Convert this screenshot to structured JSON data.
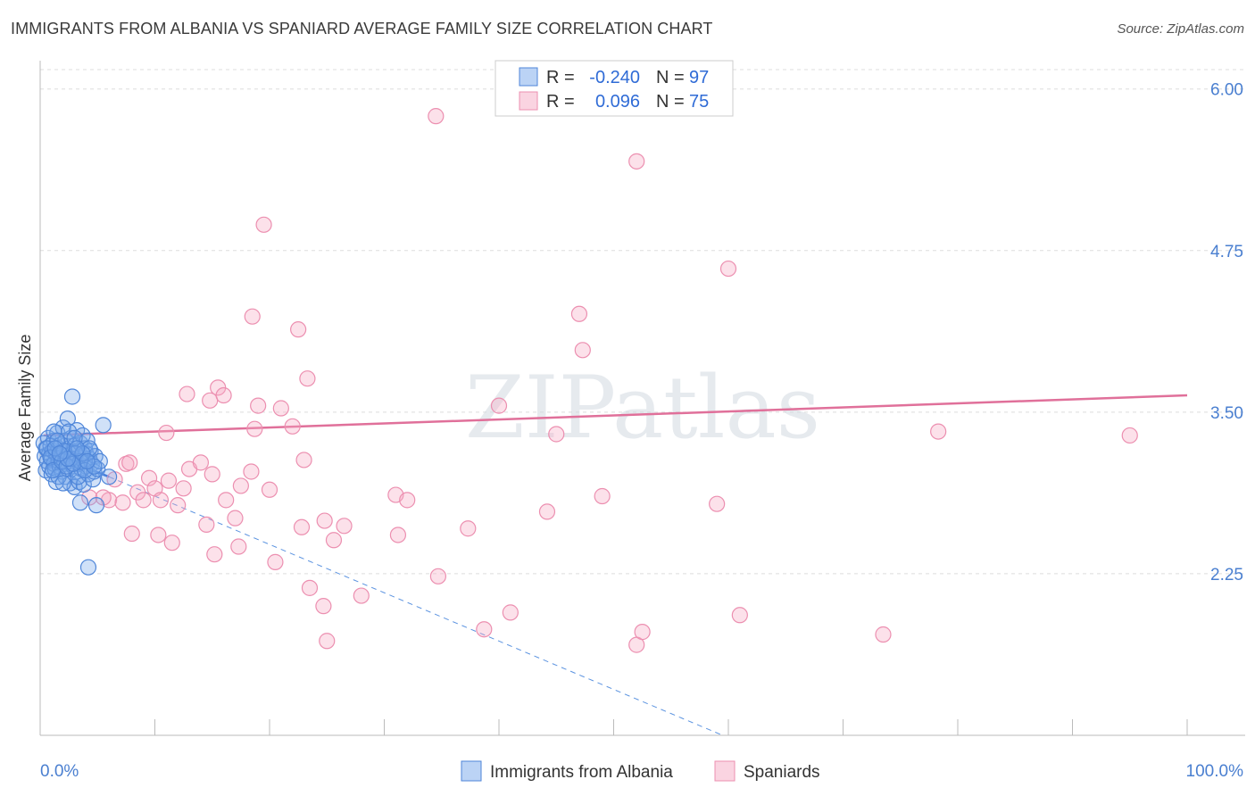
{
  "title": "IMMIGRANTS FROM ALBANIA VS SPANIARD AVERAGE FAMILY SIZE CORRELATION CHART",
  "source": "Source: ZipAtlas.com",
  "chart_data": {
    "type": "scatter",
    "ylabel": "Average Family Size",
    "xlabel": "",
    "x_tick_labels": [
      "0.0%",
      "100.0%"
    ],
    "xlim": [
      0,
      100
    ],
    "ylim": [
      1.0,
      6.15
    ],
    "y_ticks": [
      2.25,
      3.5,
      4.75,
      6.0
    ],
    "y_tick_labels": [
      "2.25",
      "3.50",
      "4.75",
      "6.00"
    ],
    "legend": {
      "r_label": "R =",
      "n_label": "N =",
      "entries": [
        {
          "r": "-0.240",
          "n": "97",
          "color": "#6aa0e8"
        },
        {
          "r": "0.096",
          "n": "75",
          "color": "#f09ab8"
        }
      ]
    },
    "watermark": "ZIPatlas",
    "series": [
      {
        "name": "Immigrants from Albania",
        "color": "#5b93e0",
        "points": [
          [
            0.3,
            3.26
          ],
          [
            0.4,
            3.16
          ],
          [
            0.5,
            3.05
          ],
          [
            0.5,
            3.22
          ],
          [
            0.6,
            3.12
          ],
          [
            0.7,
            3.3
          ],
          [
            0.8,
            3.18
          ],
          [
            0.8,
            3.08
          ],
          [
            0.9,
            3.24
          ],
          [
            1.0,
            3.14
          ],
          [
            1.0,
            3.02
          ],
          [
            1.1,
            3.2
          ],
          [
            1.2,
            3.28
          ],
          [
            1.2,
            3.1
          ],
          [
            1.3,
            3.06
          ],
          [
            1.4,
            3.18
          ],
          [
            1.4,
            2.96
          ],
          [
            1.5,
            3.34
          ],
          [
            1.6,
            3.22
          ],
          [
            1.6,
            3.12
          ],
          [
            1.7,
            3.08
          ],
          [
            1.8,
            3.25
          ],
          [
            1.8,
            3.15
          ],
          [
            1.9,
            3.04
          ],
          [
            2.0,
            3.2
          ],
          [
            2.0,
            3.38
          ],
          [
            2.1,
            3.1
          ],
          [
            2.2,
            3.28
          ],
          [
            2.2,
            3.0
          ],
          [
            2.3,
            3.16
          ],
          [
            2.4,
            3.45
          ],
          [
            2.4,
            3.06
          ],
          [
            2.5,
            3.22
          ],
          [
            2.6,
            3.12
          ],
          [
            2.6,
            2.95
          ],
          [
            2.7,
            3.3
          ],
          [
            2.8,
            3.62
          ],
          [
            2.8,
            3.18
          ],
          [
            2.9,
            3.08
          ],
          [
            3.0,
            3.24
          ],
          [
            3.0,
            2.92
          ],
          [
            3.1,
            3.14
          ],
          [
            3.2,
            3.36
          ],
          [
            3.2,
            3.04
          ],
          [
            3.3,
            3.2
          ],
          [
            3.4,
            3.1
          ],
          [
            3.4,
            2.96
          ],
          [
            3.5,
            3.26
          ],
          [
            3.6,
            3.16
          ],
          [
            3.6,
            3.06
          ],
          [
            3.7,
            3.32
          ],
          [
            3.8,
            3.12
          ],
          [
            3.8,
            2.94
          ],
          [
            3.9,
            3.22
          ],
          [
            4.0,
            3.08
          ],
          [
            4.0,
            3.18
          ],
          [
            4.1,
            3.28
          ],
          [
            4.2,
            3.02
          ],
          [
            4.3,
            3.14
          ],
          [
            4.4,
            3.2
          ],
          [
            4.5,
            3.1
          ],
          [
            4.6,
            2.98
          ],
          [
            4.7,
            3.04
          ],
          [
            4.8,
            3.16
          ],
          [
            5.0,
            3.06
          ],
          [
            5.2,
            3.12
          ],
          [
            3.5,
            2.8
          ],
          [
            4.9,
            2.78
          ],
          [
            4.2,
            2.3
          ],
          [
            5.5,
            3.4
          ],
          [
            6.0,
            3.0
          ],
          [
            1.2,
            3.35
          ],
          [
            1.6,
            3.0
          ],
          [
            2.0,
            2.95
          ],
          [
            2.5,
            3.35
          ],
          [
            3.0,
            3.3
          ],
          [
            3.3,
            3.0
          ],
          [
            0.6,
            3.22
          ],
          [
            0.9,
            3.15
          ],
          [
            1.1,
            3.05
          ],
          [
            1.5,
            3.28
          ],
          [
            1.9,
            3.12
          ],
          [
            2.3,
            3.08
          ],
          [
            2.7,
            3.14
          ],
          [
            3.1,
            3.18
          ],
          [
            3.5,
            3.12
          ],
          [
            3.9,
            3.05
          ],
          [
            4.3,
            3.22
          ],
          [
            4.7,
            3.08
          ],
          [
            2.1,
            3.2
          ],
          [
            2.9,
            3.1
          ],
          [
            3.7,
            3.18
          ],
          [
            1.3,
            3.22
          ],
          [
            2.4,
            3.14
          ],
          [
            3.2,
            3.22
          ],
          [
            4.1,
            3.12
          ],
          [
            1.7,
            3.18
          ]
        ],
        "trend": {
          "x0": 0.3,
          "y0": 3.2,
          "x1": 6.0,
          "y1": 3.0
        },
        "trend_ext": {
          "x0": 6.0,
          "y0": 3.0,
          "x1": 59.5,
          "y1": 1.0
        }
      },
      {
        "name": "Spaniards",
        "color": "#f099b6",
        "points": [
          [
            34.5,
            5.79
          ],
          [
            52.0,
            5.44
          ],
          [
            19.5,
            4.95
          ],
          [
            18.5,
            4.24
          ],
          [
            22.5,
            4.14
          ],
          [
            60.0,
            4.61
          ],
          [
            47.0,
            4.26
          ],
          [
            47.3,
            3.98
          ],
          [
            23.3,
            3.76
          ],
          [
            15.5,
            3.69
          ],
          [
            12.8,
            3.64
          ],
          [
            14.8,
            3.59
          ],
          [
            16.0,
            3.63
          ],
          [
            19.0,
            3.55
          ],
          [
            21.0,
            3.53
          ],
          [
            40.0,
            3.55
          ],
          [
            11.0,
            3.34
          ],
          [
            18.7,
            3.37
          ],
          [
            22.0,
            3.39
          ],
          [
            45.0,
            3.33
          ],
          [
            78.3,
            3.35
          ],
          [
            95.0,
            3.32
          ],
          [
            23.0,
            3.13
          ],
          [
            7.5,
            3.1
          ],
          [
            7.8,
            3.11
          ],
          [
            13.0,
            3.06
          ],
          [
            14.0,
            3.11
          ],
          [
            15.0,
            3.02
          ],
          [
            18.4,
            3.04
          ],
          [
            6.5,
            2.98
          ],
          [
            9.5,
            2.99
          ],
          [
            12.5,
            2.91
          ],
          [
            17.5,
            2.93
          ],
          [
            11.2,
            2.97
          ],
          [
            10.0,
            2.91
          ],
          [
            8.5,
            2.88
          ],
          [
            4.3,
            2.84
          ],
          [
            6.0,
            2.82
          ],
          [
            10.5,
            2.82
          ],
          [
            20.0,
            2.9
          ],
          [
            16.2,
            2.82
          ],
          [
            9.0,
            2.82
          ],
          [
            7.2,
            2.8
          ],
          [
            5.5,
            2.84
          ],
          [
            12.0,
            2.78
          ],
          [
            31.0,
            2.86
          ],
          [
            32.0,
            2.82
          ],
          [
            49.0,
            2.85
          ],
          [
            59.0,
            2.79
          ],
          [
            44.2,
            2.73
          ],
          [
            17.0,
            2.68
          ],
          [
            24.8,
            2.66
          ],
          [
            26.5,
            2.62
          ],
          [
            14.5,
            2.63
          ],
          [
            22.8,
            2.61
          ],
          [
            37.3,
            2.6
          ],
          [
            8.0,
            2.56
          ],
          [
            10.3,
            2.55
          ],
          [
            31.2,
            2.55
          ],
          [
            11.5,
            2.49
          ],
          [
            15.2,
            2.4
          ],
          [
            25.6,
            2.51
          ],
          [
            17.3,
            2.46
          ],
          [
            20.5,
            2.34
          ],
          [
            34.7,
            2.23
          ],
          [
            23.5,
            2.14
          ],
          [
            28.0,
            2.08
          ],
          [
            24.7,
            2.0
          ],
          [
            41.0,
            1.95
          ],
          [
            61.0,
            1.93
          ],
          [
            38.7,
            1.82
          ],
          [
            52.0,
            1.7
          ],
          [
            73.5,
            1.78
          ],
          [
            52.5,
            1.8
          ],
          [
            25.0,
            1.73
          ]
        ],
        "trend": {
          "x0": 0.3,
          "y0": 3.32,
          "x1": 100.0,
          "y1": 3.63
        }
      }
    ]
  },
  "bottom_legend": [
    "Immigrants from Albania",
    "Spaniards"
  ]
}
